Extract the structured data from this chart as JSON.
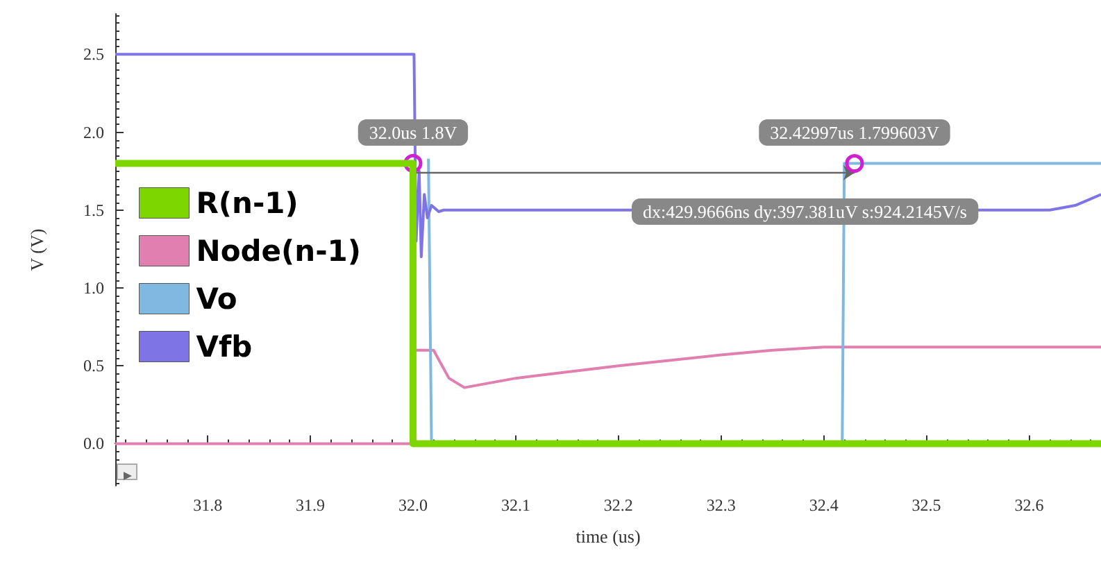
{
  "chart_data": {
    "type": "line",
    "xlabel": "time (us)",
    "ylabel": "V (V)",
    "xlim": [
      31.71,
      32.67
    ],
    "ylim": [
      -0.27,
      2.76
    ],
    "xticks": [
      31.8,
      31.9,
      {
        "value": 32,
        "label": "32.0"
      },
      32.1,
      32.2,
      32.3,
      32.4,
      32.5,
      32.6
    ],
    "yticks": [
      {
        "value": 0,
        "label": "0.0"
      },
      0.5,
      {
        "value": 1,
        "label": "1.0"
      },
      1.5,
      {
        "value": 2,
        "label": "2.0"
      },
      2.5
    ],
    "legend": "left",
    "marker": "none",
    "line_style": "solid",
    "series": [
      {
        "name": "R(n-1)",
        "color": "#7ed600",
        "x": [
          31.71,
          32.0,
          32.0,
          32.67
        ],
        "values": [
          1.8,
          1.8,
          0,
          0
        ]
      },
      {
        "name": "Node(n-1)",
        "color": "#e07fb0",
        "x": [
          31.71,
          32.0,
          32.0,
          32.02,
          32.035,
          32.05,
          32.1,
          32.2,
          32.3,
          32.35,
          32.4,
          32.5,
          32.67
        ],
        "values": [
          0,
          0,
          0.6,
          0.6,
          0.42,
          0.36,
          0.42,
          0.5,
          0.57,
          0.6,
          0.62,
          0.62,
          0.62
        ]
      },
      {
        "name": "Vo",
        "color": "#7fb8e0",
        "x": [
          32.015,
          32.018,
          32.418,
          32.42,
          32.67
        ],
        "values": [
          1.83,
          0,
          0,
          1.8,
          1.8
        ]
      },
      {
        "name": "Vfb",
        "color": "#7e74e6",
        "x": [
          31.71,
          32.0,
          32.001,
          32.003,
          32.006,
          32.008,
          32.011,
          32.014,
          32.018,
          32.025,
          32.03,
          32.62,
          32.645,
          32.67
        ],
        "values": [
          2.5,
          2.5,
          2.5,
          1.3,
          1.75,
          1.2,
          1.6,
          1.45,
          1.53,
          1.49,
          1.5,
          1.5,
          1.53,
          1.6
        ]
      }
    ],
    "annotations": [
      {
        "text": "32.0us 1.8V",
        "x": 32.0,
        "y": 1.8
      },
      {
        "text": "32.42997us 1.799603V",
        "x": 32.42997,
        "y": 1.799603
      },
      "dx:429.9666ns dy:397.381uV s:924.2145V/s"
    ]
  }
}
